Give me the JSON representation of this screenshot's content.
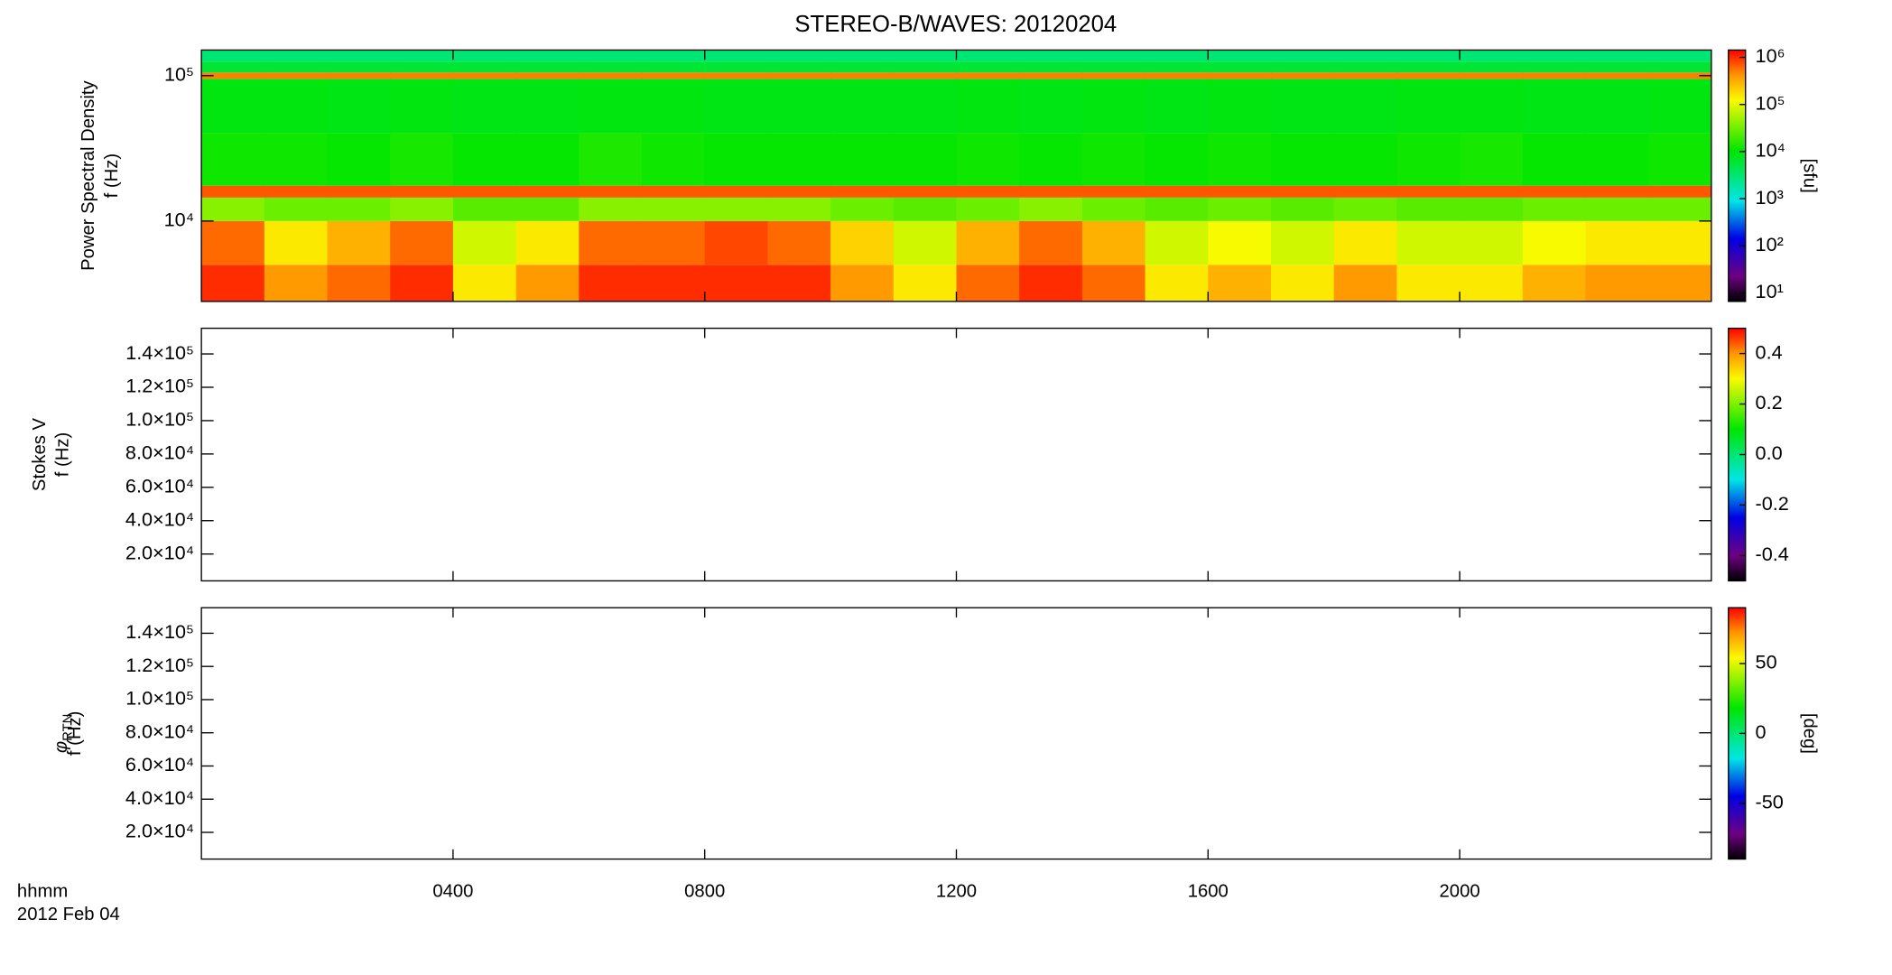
{
  "chart_data": {
    "type": "spectrogram",
    "title": "STEREO-B/WAVES: 20120204",
    "xlabel": "hhmm",
    "date": "2012 Feb 04",
    "xlim": [
      0,
      24
    ],
    "xticks": [
      {
        "value": 4,
        "label": "0400"
      },
      {
        "value": 8,
        "label": "0800"
      },
      {
        "value": 12,
        "label": "1200"
      },
      {
        "value": 16,
        "label": "1600"
      },
      {
        "value": 20,
        "label": "2000"
      }
    ],
    "panels": [
      {
        "type": "heatmap",
        "ylabel": "Power Spectral Density",
        "ylabel2": "f (Hz)",
        "yscale": "log",
        "ylim": [
          2800,
          150000
        ],
        "yticks": [
          {
            "value": 10000,
            "label": "10⁴"
          },
          {
            "value": 100000,
            "label": "10⁵"
          }
        ],
        "zscale": "log",
        "zlim": [
          6.6,
          1430000
        ],
        "zticks": [
          {
            "value": 10,
            "label": "10¹"
          },
          {
            "value": 100,
            "label": "10²"
          },
          {
            "value": 1000,
            "label": "10³"
          },
          {
            "value": 10000,
            "label": "10⁴"
          },
          {
            "value": 100000,
            "label": "10⁵"
          },
          {
            "value": 1000000,
            "label": "10⁶"
          }
        ],
        "zlabel": "[sfu]",
        "colormap": "rainbow",
        "x_bins": [
          0,
          1,
          2,
          3,
          4,
          5,
          6,
          7,
          8,
          9,
          10,
          11,
          12,
          13,
          14,
          15,
          16,
          17,
          18,
          19,
          20,
          21,
          22,
          23,
          24
        ],
        "y_bins": [
          2800,
          5000,
          10000,
          14500,
          17500,
          40000,
          95000,
          105000,
          125000,
          150000
        ],
        "values": [
          [
            1000000,
            400000,
            600000,
            1000000,
            150000,
            400000,
            1000000,
            1000000,
            1000000,
            1000000,
            400000,
            150000,
            600000,
            1000000,
            600000,
            150000,
            300000,
            150000,
            400000,
            150000,
            150000,
            300000,
            400000,
            400000
          ],
          [
            600000,
            150000,
            300000,
            600000,
            80000,
            150000,
            600000,
            600000,
            800000,
            600000,
            200000,
            80000,
            300000,
            600000,
            300000,
            80000,
            120000,
            80000,
            150000,
            80000,
            80000,
            120000,
            150000,
            150000
          ],
          [
            40000,
            30000,
            30000,
            40000,
            25000,
            25000,
            40000,
            40000,
            40000,
            40000,
            30000,
            25000,
            30000,
            40000,
            30000,
            25000,
            30000,
            25000,
            30000,
            25000,
            25000,
            30000,
            30000,
            30000
          ],
          [
            700000,
            700000,
            700000,
            700000,
            700000,
            700000,
            700000,
            700000,
            700000,
            700000,
            700000,
            700000,
            700000,
            700000,
            700000,
            700000,
            700000,
            700000,
            700000,
            700000,
            700000,
            700000,
            700000,
            700000
          ],
          [
            12000,
            12000,
            11000,
            13000,
            11000,
            11000,
            14000,
            12000,
            11000,
            11000,
            11000,
            11000,
            12000,
            11000,
            12000,
            11000,
            12000,
            11000,
            11000,
            12000,
            13000,
            11000,
            11000,
            12000
          ],
          [
            9000,
            9000,
            8500,
            9000,
            8500,
            8500,
            9000,
            9000,
            8500,
            8500,
            8500,
            8500,
            9000,
            8500,
            9000,
            8500,
            9000,
            8500,
            8500,
            9000,
            9000,
            8500,
            8500,
            9000
          ],
          [
            500000,
            500000,
            500000,
            500000,
            500000,
            500000,
            500000,
            500000,
            500000,
            500000,
            500000,
            500000,
            500000,
            500000,
            500000,
            500000,
            500000,
            500000,
            500000,
            500000,
            500000,
            500000,
            500000,
            500000
          ],
          [
            6000,
            6000,
            6000,
            6000,
            6000,
            6000,
            6000,
            6000,
            6000,
            6000,
            6000,
            6000,
            6000,
            6000,
            6000,
            6000,
            6000,
            6000,
            6000,
            6000,
            6000,
            6000,
            6000,
            6000
          ],
          [
            3000,
            3000,
            3000,
            3000,
            3000,
            3000,
            3000,
            3000,
            3000,
            3000,
            3000,
            3000,
            3000,
            3000,
            3000,
            3000,
            3000,
            3000,
            3000,
            3000,
            3000,
            3000,
            3000,
            3000
          ]
        ]
      },
      {
        "type": "heatmap",
        "ylabel": "Stokes V",
        "ylabel2": "f (Hz)",
        "yscale": "linear",
        "ylim": [
          3900,
          155400
        ],
        "yticks": [
          {
            "value": 20000,
            "label": "2.0×10⁴"
          },
          {
            "value": 40000,
            "label": "4.0×10⁴"
          },
          {
            "value": 60000,
            "label": "6.0×10⁴"
          },
          {
            "value": 80000,
            "label": "8.0×10⁴"
          },
          {
            "value": 100000,
            "label": "1.0×10⁵"
          },
          {
            "value": 120000,
            "label": "1.2×10⁵"
          },
          {
            "value": 140000,
            "label": "1.4×10⁵"
          }
        ],
        "zscale": "linear",
        "zlim": [
          -0.5,
          0.5
        ],
        "zticks": [
          -0.4,
          -0.2,
          {
            "value": 0,
            "label": "0.0"
          },
          0.2,
          0.4
        ],
        "colormap": "rainbow"
      },
      {
        "type": "heatmap",
        "ylabel": "φ",
        "ylabel_sub": "RTN",
        "ylabel2": "f (Hz)",
        "yscale": "linear",
        "ylim": [
          3900,
          155400
        ],
        "yticks": [
          {
            "value": 20000,
            "label": "2.0×10⁴"
          },
          {
            "value": 40000,
            "label": "4.0×10⁴"
          },
          {
            "value": 60000,
            "label": "6.0×10⁴"
          },
          {
            "value": 80000,
            "label": "8.0×10⁴"
          },
          {
            "value": 100000,
            "label": "1.0×10⁵"
          },
          {
            "value": 120000,
            "label": "1.2×10⁵"
          },
          {
            "value": 140000,
            "label": "1.4×10⁵"
          }
        ],
        "zscale": "linear",
        "zlim": [
          -90,
          90
        ],
        "zticks": [
          -50,
          0,
          50
        ],
        "zlabel": "[deg]",
        "colormap": "rainbow"
      }
    ]
  }
}
